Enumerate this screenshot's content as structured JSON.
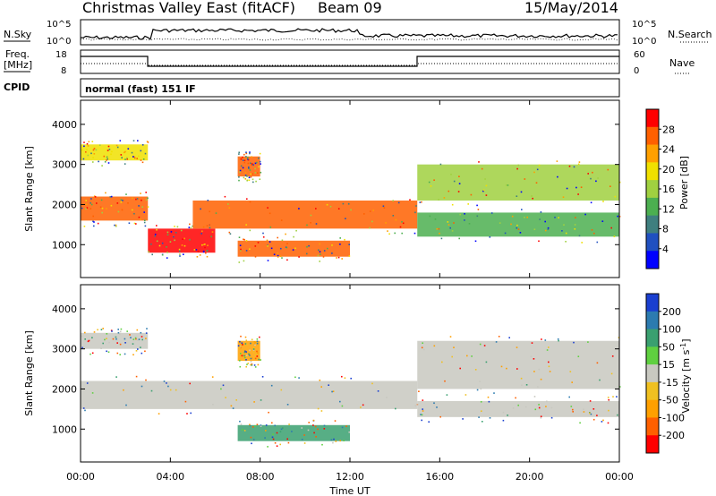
{
  "header": {
    "station": "Christmas Valley East (fitACF)",
    "beam": "Beam 09",
    "date": "15/May/2014"
  },
  "panels_top": {
    "nsky_label": "N.Sky",
    "nsky_ticks": [
      "10^5",
      "10^0"
    ],
    "nsearch_label": "N.Search",
    "nsearch_ticks": [
      "10^5",
      "10^0"
    ],
    "freq_label_1": "Freq.",
    "freq_label_2": "[MHz]",
    "freq_ticks": [
      "18",
      "8"
    ],
    "nave_label": "Nave",
    "nave_ticks": [
      "60",
      "0"
    ],
    "cpid_label": "CPID",
    "cpid_text": "normal (fast) 151 IF"
  },
  "chart_data": [
    {
      "type": "heatmap",
      "title": "",
      "xlabel": "Time UT",
      "ylabel": "Slant Range [km]",
      "x_ticks": [
        "00:00",
        "04:00",
        "08:00",
        "12:00",
        "16:00",
        "20:00",
        "00:00"
      ],
      "y_ticks": [
        "1000",
        "2000",
        "3000",
        "4000"
      ],
      "xlim_hours": [
        0,
        24
      ],
      "ylim_km": [
        180,
        4600
      ],
      "colorbar": {
        "label": "Power [dB]",
        "ticks": [
          "4",
          "8",
          "12",
          "16",
          "20",
          "24",
          "28"
        ],
        "colors": [
          "#0000ff",
          "#2050c0",
          "#3f7f7f",
          "#4caf50",
          "#a0d040",
          "#f0e000",
          "#ffa000",
          "#ff6000",
          "#ff0000"
        ]
      },
      "features": [
        {
          "name": "band-a",
          "start_h": 0.0,
          "end_h": 3.0,
          "range_km": [
            3100,
            3500
          ],
          "db": 18
        },
        {
          "name": "band-b",
          "start_h": 0.0,
          "end_h": 3.0,
          "range_km": [
            1600,
            2200
          ],
          "db": 26
        },
        {
          "name": "band-c",
          "start_h": 3.0,
          "end_h": 6.0,
          "range_km": [
            800,
            1400
          ],
          "db": 30
        },
        {
          "name": "band-d",
          "start_h": 5.0,
          "end_h": 15.0,
          "range_km": [
            1400,
            2100
          ],
          "db": 26
        },
        {
          "name": "band-e",
          "start_h": 7.0,
          "end_h": 8.0,
          "range_km": [
            2700,
            3200
          ],
          "db": 26
        },
        {
          "name": "band-f",
          "start_h": 7.0,
          "end_h": 12.0,
          "range_km": [
            700,
            1100
          ],
          "db": 28
        },
        {
          "name": "band-g",
          "start_h": 15.0,
          "end_h": 24.0,
          "range_km": [
            2100,
            3000
          ],
          "db": 14
        },
        {
          "name": "band-h",
          "start_h": 15.0,
          "end_h": 24.0,
          "range_km": [
            1200,
            1800
          ],
          "db": 10
        }
      ]
    },
    {
      "type": "heatmap",
      "title": "",
      "xlabel": "Time UT",
      "ylabel": "Slant Range [km]",
      "x_ticks": [
        "00:00",
        "04:00",
        "08:00",
        "12:00",
        "16:00",
        "20:00",
        "00:00"
      ],
      "y_ticks": [
        "1000",
        "2000",
        "3000",
        "4000"
      ],
      "xlim_hours": [
        0,
        24
      ],
      "ylim_km": [
        180,
        4600
      ],
      "colorbar": {
        "label": "Velocity [m s",
        "label_sup": "-1",
        "label_end": "]",
        "ticks": [
          "200",
          "100",
          "50",
          "15",
          "-15",
          "-50",
          "-100",
          "-200"
        ],
        "colors": [
          "#1a3fd0",
          "#2c7bb0",
          "#3aa070",
          "#5fd040",
          "#c8c8c0",
          "#f0c020",
          "#ffa000",
          "#ff6000",
          "#ff0000"
        ]
      },
      "features": [
        {
          "name": "vel-a",
          "start_h": 0.0,
          "end_h": 3.0,
          "range_km": [
            3000,
            3400
          ],
          "velocity": 0
        },
        {
          "name": "vel-b",
          "start_h": 0.0,
          "end_h": 15.0,
          "range_km": [
            1500,
            2200
          ],
          "velocity": 0
        },
        {
          "name": "vel-c",
          "start_h": 7.0,
          "end_h": 8.0,
          "range_km": [
            2700,
            3200
          ],
          "velocity": -80
        },
        {
          "name": "vel-d",
          "start_h": 7.0,
          "end_h": 12.0,
          "range_km": [
            700,
            1100
          ],
          "velocity": 40
        },
        {
          "name": "vel-e",
          "start_h": 15.0,
          "end_h": 24.0,
          "range_km": [
            2000,
            3200
          ],
          "velocity": 0
        },
        {
          "name": "vel-f",
          "start_h": 15.0,
          "end_h": 24.0,
          "range_km": [
            1300,
            1700
          ],
          "velocity": 0
        }
      ]
    }
  ]
}
